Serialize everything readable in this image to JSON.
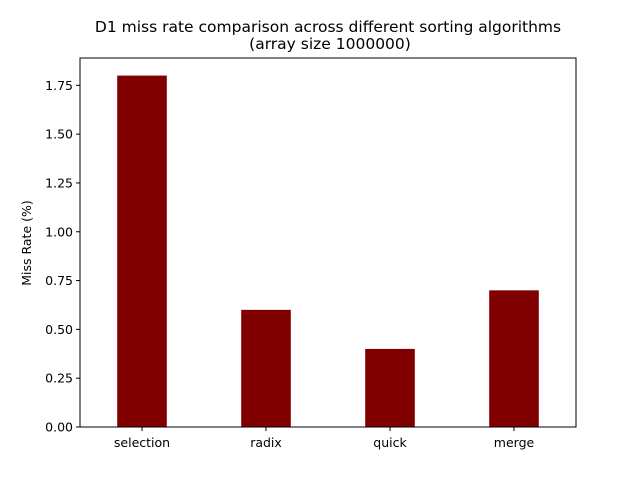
{
  "chart_data": {
    "type": "bar",
    "title": "D1  miss rate comparison across different sorting algorithms",
    "subtitle": "(array size 1000000)",
    "xlabel": "",
    "ylabel": "Miss Rate (%)",
    "categories": [
      "selection",
      "radix",
      "quick",
      "merge"
    ],
    "values": [
      1.8,
      0.6,
      0.4,
      0.7
    ],
    "ylim": [
      0,
      1.89
    ],
    "yticks": [
      "0.00",
      "0.25",
      "0.50",
      "0.75",
      "1.00",
      "1.25",
      "1.50",
      "1.75"
    ],
    "bar_color": "#800000",
    "grid": false,
    "legend": "none"
  }
}
